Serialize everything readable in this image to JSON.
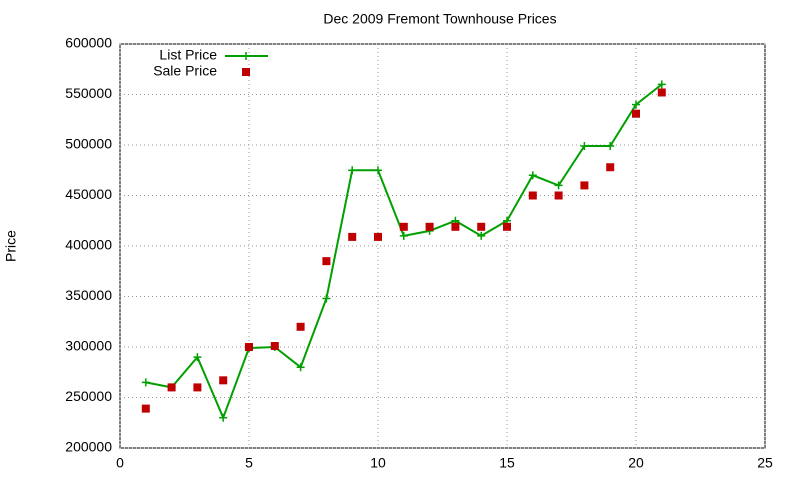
{
  "chart_data": {
    "type": "line",
    "title": "Dec 2009 Fremont Townhouse Prices",
    "y_label": "Price",
    "x": [
      1,
      2,
      3,
      4,
      5,
      6,
      7,
      8,
      9,
      10,
      11,
      12,
      13,
      14,
      15,
      16,
      17,
      18,
      19,
      20,
      21
    ],
    "series": [
      {
        "name": "List Price",
        "type": "line",
        "color": "#00a000",
        "values": [
          265000,
          260000,
          290000,
          230000,
          299000,
          300000,
          280000,
          348000,
          475000,
          475000,
          410000,
          415000,
          425000,
          410000,
          425000,
          470000,
          460000,
          499000,
          499000,
          540000,
          560000
        ]
      },
      {
        "name": "Sale Price",
        "type": "scatter",
        "color": "#c00000",
        "values": [
          239000,
          260000,
          260000,
          267000,
          300000,
          301000,
          320000,
          385000,
          409000,
          409000,
          419000,
          419000,
          419000,
          419000,
          419000,
          450000,
          450000,
          460000,
          478000,
          531000,
          552000
        ]
      }
    ],
    "xlim": [
      0,
      25
    ],
    "xticks": [
      0,
      5,
      10,
      15,
      20,
      25
    ],
    "ylim": [
      200000,
      600000
    ],
    "yticks": [
      200000,
      250000,
      300000,
      350000,
      400000,
      450000,
      500000,
      550000,
      600000
    ],
    "grid": true,
    "legend": "top-left"
  }
}
